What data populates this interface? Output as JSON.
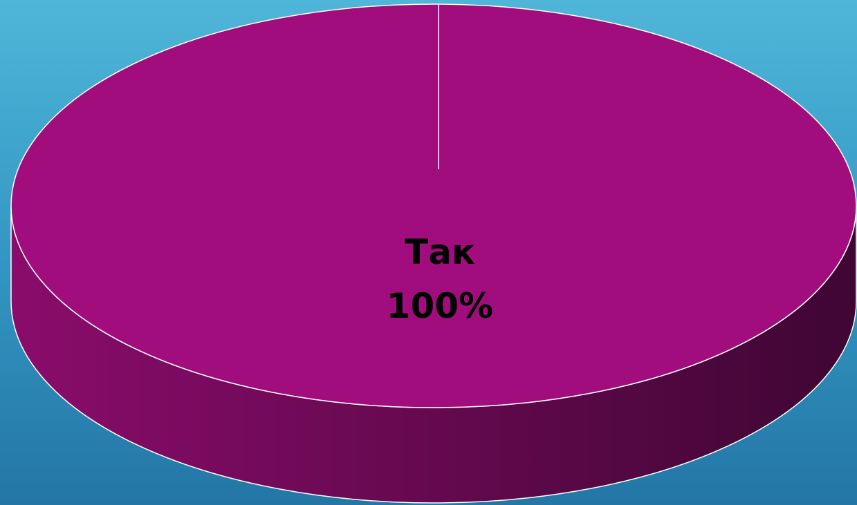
{
  "chart_data": {
    "type": "pie",
    "style": "3d",
    "categories": [
      "Так"
    ],
    "values": [
      100
    ],
    "data_labels": [
      {
        "category": "Так",
        "percent": "100%"
      }
    ],
    "colors": {
      "slice_top": "#a20d7e",
      "slice_side_light": "#8a0c6b",
      "slice_side_dark": "#3f0633",
      "edge": "#ffffff"
    },
    "legend": "none"
  },
  "background": {
    "top_color": "#4fb6d9",
    "bottom_color": "#2376a6"
  }
}
